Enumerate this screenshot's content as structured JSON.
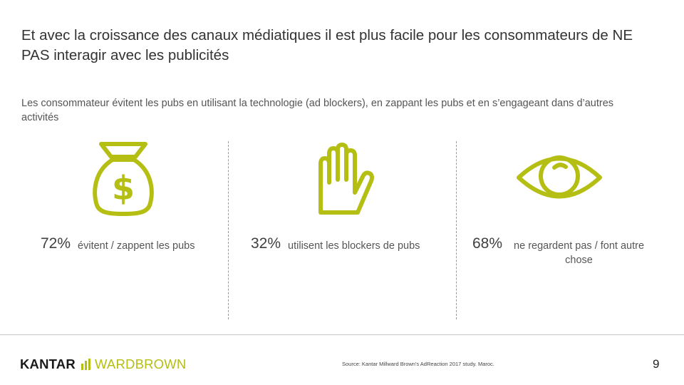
{
  "header": {
    "title": "Et avec la croissance des canaux médiatiques il est plus facile pour les consommateurs de NE PAS interagir avec les publicités",
    "subtitle": "Les consommateur évitent les pubs en utilisant la technologie (ad blockers), en zappant les pubs et en s’engageant dans d’autres activités"
  },
  "stats": [
    {
      "icon": "money-bag-icon",
      "percent": "72%",
      "description": "évitent / zappent les pubs",
      "value": 72
    },
    {
      "icon": "raised-hand-icon",
      "percent": "32%",
      "description": "utilisent les blockers de pubs",
      "value": 32
    },
    {
      "icon": "eye-icon",
      "percent": "68%",
      "description": "ne regardent pas / font autre chose",
      "value": 68
    }
  ],
  "footer": {
    "brand_primary": "KANTAR",
    "brand_secondary": "WARDBROWN",
    "source": "Source: Kantar Millward Brown's AdReaction 2017 study. Maroc.",
    "page_number": "9"
  },
  "colors": {
    "accent": "#b5be13",
    "text": "#404040"
  }
}
